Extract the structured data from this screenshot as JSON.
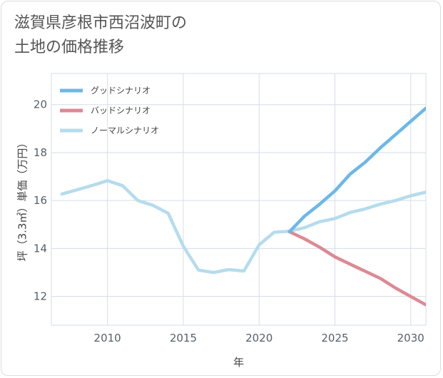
{
  "page": {
    "title_line1": "滋賀県彦根市西沼波町の",
    "title_line2": "土地の価格推移"
  },
  "chart_data": {
    "type": "line",
    "xlabel": "年",
    "ylabel": "坪（3.3㎡）単価（万円）",
    "xlim": [
      2006.3,
      2031
    ],
    "ylim": [
      10.8,
      21.3
    ],
    "xticks": [
      2010,
      2015,
      2020,
      2025,
      2030
    ],
    "yticks": [
      12,
      14,
      16,
      18,
      20
    ],
    "grid": true,
    "legend_position": "top-left",
    "series": [
      {
        "name": "グッドシナリオ",
        "color": "#6cb8e8",
        "x": [
          2022,
          2023,
          2024,
          2025,
          2026,
          2027,
          2028,
          2029,
          2030,
          2031
        ],
        "y": [
          14.7,
          15.35,
          15.85,
          16.4,
          17.1,
          17.6,
          18.2,
          18.75,
          19.3,
          19.85
        ]
      },
      {
        "name": "バッドシナリオ",
        "color": "#dc8a94",
        "x": [
          2022,
          2023,
          2024,
          2025,
          2026,
          2027,
          2028,
          2029,
          2030,
          2031
        ],
        "y": [
          14.7,
          14.4,
          14.05,
          13.65,
          13.35,
          13.05,
          12.75,
          12.35,
          12.0,
          11.65
        ]
      },
      {
        "name": "ノーマルシナリオ",
        "color": "#b5dced",
        "x": [
          2007,
          2008,
          2009,
          2010,
          2011,
          2012,
          2013,
          2014,
          2015,
          2016,
          2017,
          2018,
          2019,
          2020,
          2021,
          2022,
          2023,
          2024,
          2025,
          2026,
          2027,
          2028,
          2029,
          2030,
          2031
        ],
        "y": [
          16.27,
          16.45,
          16.63,
          16.83,
          16.62,
          16.0,
          15.8,
          15.47,
          14.1,
          13.1,
          13.0,
          13.12,
          13.06,
          14.15,
          14.68,
          14.72,
          14.87,
          15.12,
          15.25,
          15.5,
          15.65,
          15.85,
          16.0,
          16.2,
          16.35
        ]
      }
    ]
  }
}
